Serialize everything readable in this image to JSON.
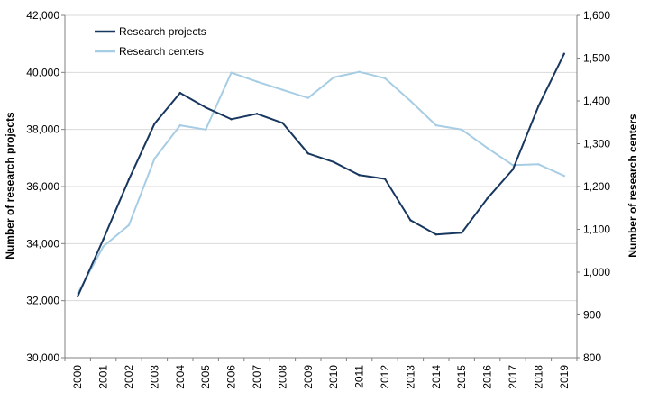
{
  "chart_data": {
    "type": "line",
    "title": "",
    "x": [
      "2000",
      "2001",
      "2002",
      "2003",
      "2004",
      "2005",
      "2006",
      "2007",
      "2008",
      "2009",
      "2010",
      "2011",
      "2012",
      "2013",
      "2014",
      "2015",
      "2016",
      "2017",
      "2018",
      "2019"
    ],
    "xlabel": "",
    "ylabel_left": "Number of research projects",
    "ylabel_right": "Number of research centers",
    "ylim_left": [
      30000,
      42000
    ],
    "ylim_right": [
      800,
      1600
    ],
    "yticks_left": [
      "30,000",
      "32,000",
      "34,000",
      "36,000",
      "38,000",
      "40,000",
      "42,000"
    ],
    "yticks_right": [
      "800",
      "900",
      "1,000",
      "1,100",
      "1,200",
      "1,300",
      "1,400",
      "1,500",
      "1,600"
    ],
    "grid": "horizontal",
    "legend_position": "top-left",
    "series": [
      {
        "name": "Research projects",
        "axis": "left",
        "color": "#17375e",
        "values": [
          32150,
          34150,
          36250,
          38200,
          39280,
          38770,
          38360,
          38550,
          38230,
          37160,
          36860,
          36400,
          36270,
          34820,
          34320,
          34380,
          35580,
          36600,
          38820,
          40650
        ]
      },
      {
        "name": "Research centers",
        "axis": "right",
        "color": "#a6cde4",
        "values": [
          950,
          1060,
          1110,
          1265,
          1343,
          1333,
          1466,
          1445,
          1426,
          1407,
          1455,
          1468,
          1453,
          1400,
          1343,
          1333,
          1290,
          1250,
          1252,
          1225
        ]
      }
    ]
  }
}
